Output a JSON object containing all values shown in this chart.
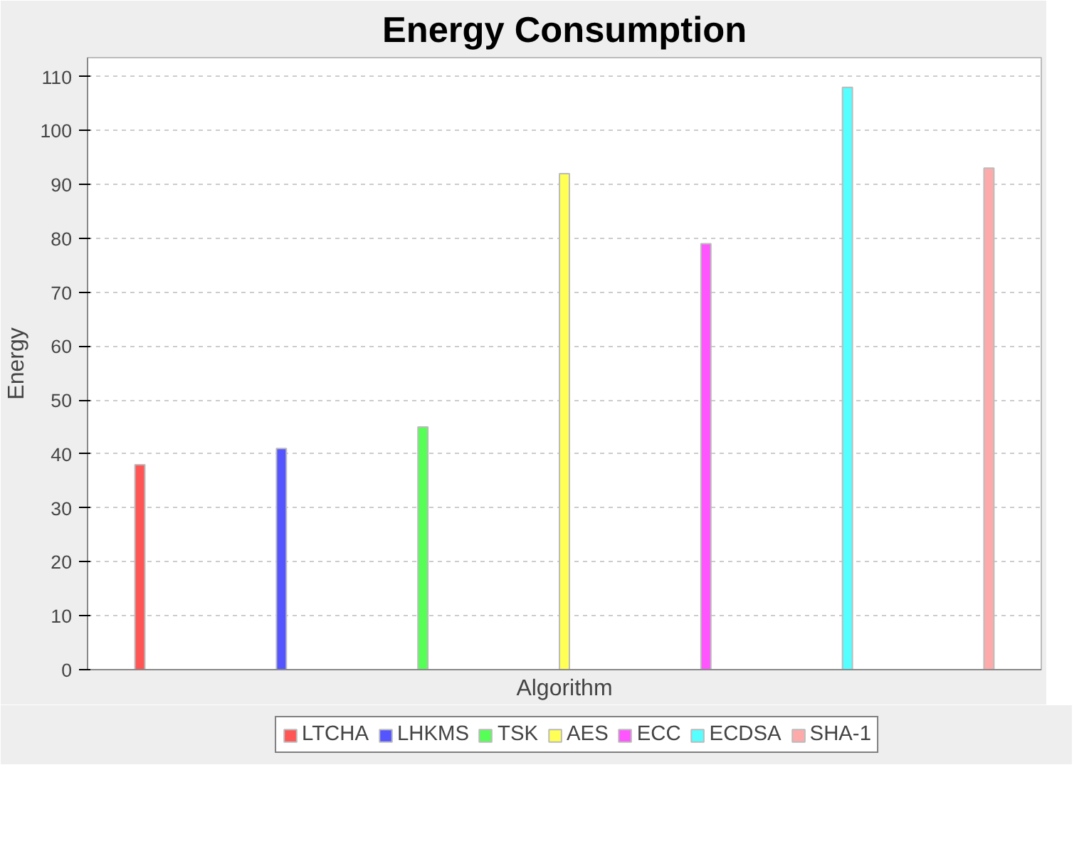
{
  "chart_data": {
    "type": "bar",
    "title": "Energy Consumption",
    "xlabel": "Algorithm",
    "ylabel": "Energy",
    "categories": [
      null
    ],
    "series": [
      {
        "name": "LTCHA",
        "color": "#ff5555",
        "values": [
          38
        ]
      },
      {
        "name": "LHKMS",
        "color": "#5555ff",
        "values": [
          41
        ]
      },
      {
        "name": "TSK",
        "color": "#55ff55",
        "values": [
          45
        ]
      },
      {
        "name": "AES",
        "color": "#ffff55",
        "values": [
          92
        ]
      },
      {
        "name": "ECC",
        "color": "#ff55ff",
        "values": [
          79
        ]
      },
      {
        "name": "ECDSA",
        "color": "#55ffff",
        "values": [
          108
        ]
      },
      {
        "name": "SHA-1",
        "color": "#ffaaaa",
        "values": [
          93
        ]
      }
    ],
    "ylim": [
      0,
      113.5
    ],
    "yticks": [
      0,
      10,
      20,
      30,
      40,
      50,
      60,
      70,
      80,
      90,
      100,
      110
    ],
    "grid": "y",
    "legend": "bottom"
  }
}
